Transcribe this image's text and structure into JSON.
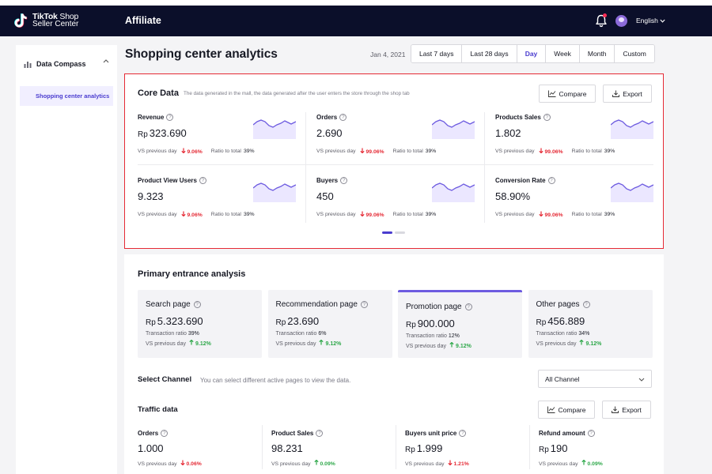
{
  "header": {
    "brand_line1": "TikTok",
    "brand_line1b": "Shop",
    "brand_line2": "Seller Center",
    "section": "Affiliate",
    "language": "English",
    "icons": {
      "bell": "bell-icon",
      "avatar": "avatar",
      "caret": "chevron-down-icon"
    }
  },
  "sidebar": {
    "group_label": "Data Compass",
    "items": [
      {
        "label": "Shopping center analytics",
        "active": true
      }
    ]
  },
  "main": {
    "title": "Shopping center analytics",
    "date": "Jan 4, 2021",
    "ranges": [
      "Last 7 days",
      "Last 28 days",
      "Day",
      "Week",
      "Month",
      "Custom"
    ],
    "active_range": "Day"
  },
  "core_data": {
    "title": "Core Data",
    "subtitle": "The data generated in the mall, the data generated after the user enters the store through the shop tab",
    "compare_label": "Compare",
    "export_label": "Export",
    "metrics": [
      {
        "label": "Revenue",
        "currency": "Rp",
        "value": "323.690",
        "vs_label": "VS previous day",
        "change": "9.06%",
        "ratio_label": "Ratio to total",
        "ratio": "39%"
      },
      {
        "label": "Orders",
        "currency": "",
        "value": "2.690",
        "vs_label": "VS previous day",
        "change": "99.06%",
        "ratio_label": "Ratio to total",
        "ratio": "39%"
      },
      {
        "label": "Products Sales",
        "currency": "",
        "value": "1.802",
        "vs_label": "VS previous day",
        "change": "99.06%",
        "ratio_label": "Ratio to total",
        "ratio": "39%"
      },
      {
        "label": "Product View Users",
        "currency": "",
        "value": "9.323",
        "vs_label": "VS previous day",
        "change": "9.06%",
        "ratio_label": "Ratio to total",
        "ratio": "39%"
      },
      {
        "label": "Buyers",
        "currency": "",
        "value": "450",
        "vs_label": "VS previous day",
        "change": "99.06%",
        "ratio_label": "Ratio to total",
        "ratio": "39%"
      },
      {
        "label": "Conversion Rate",
        "currency": "",
        "value": "58.90%",
        "vs_label": "VS previous day",
        "change": "99.06%",
        "ratio_label": "Ratio to total",
        "ratio": "39%"
      }
    ],
    "trend_direction": "down",
    "pager": {
      "pages": 2,
      "current": 1
    },
    "accent_color": "#4a3ccf",
    "down_color": "#e52a35",
    "up_color": "#2ea84a"
  },
  "entrance": {
    "title": "Primary entrance analysis",
    "tiles": [
      {
        "label": "Search page",
        "currency": "Rp",
        "value": "5.323.690",
        "ratio_label": "Transaction ratio",
        "ratio": "39%",
        "vs_label": "VS previous day",
        "change": "9.12%",
        "active": false
      },
      {
        "label": "Recommendation page",
        "currency": "Rp",
        "value": "23.690",
        "ratio_label": "Transaction ratio",
        "ratio": "6%",
        "vs_label": "VS previous day",
        "change": "9.12%",
        "active": false
      },
      {
        "label": "Promotion page",
        "currency": "Rp",
        "value": "900.000",
        "ratio_label": "Transaction ratio",
        "ratio": "12%",
        "vs_label": "VS previous day",
        "change": "9.12%",
        "active": true
      },
      {
        "label": "Other pages",
        "currency": "Rp",
        "value": "456.889",
        "ratio_label": "Transaction ratio",
        "ratio": "34%",
        "vs_label": "VS previous day",
        "change": "9.12%",
        "active": false
      }
    ],
    "channel": {
      "label": "Select Channel",
      "hint": "You can select different active pages to view the data.",
      "selected": "All Channel"
    },
    "traffic": {
      "title": "Traffic data",
      "compare_label": "Compare",
      "export_label": "Export",
      "metrics": [
        {
          "label": "Orders",
          "currency": "",
          "value": "1.000",
          "vs_label": "VS previous day",
          "change": "0.06%",
          "direction": "down"
        },
        {
          "label": "Product Sales",
          "currency": "",
          "value": "98.231",
          "vs_label": "VS previous day",
          "change": "0.09%",
          "direction": "up"
        },
        {
          "label": "Buyers unit price",
          "currency": "Rp",
          "value": "1.999",
          "vs_label": "VS previous day",
          "change": "1.21%",
          "direction": "down"
        },
        {
          "label": "Refund amount",
          "currency": "Rp",
          "value": "190",
          "vs_label": "VS previous day",
          "change": "0.09%",
          "direction": "up"
        }
      ]
    }
  }
}
